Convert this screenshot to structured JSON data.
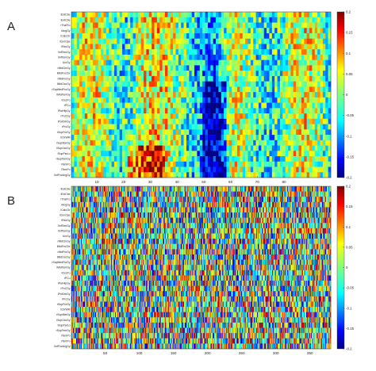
{
  "panels": [
    {
      "letter": "A"
    },
    {
      "letter": "B"
    }
  ],
  "chart_data": [
    {
      "type": "heatmap",
      "title": "",
      "xlabel": "",
      "ylabel": "",
      "x_range": [
        1,
        97
      ],
      "x_ticks": [
        10,
        20,
        30,
        40,
        50,
        60,
        70,
        80
      ],
      "rows": [
        "lExtCbe",
        "lExtCbe",
        "rThaPro",
        "rAngGy",
        "lCalcCtr",
        "rCenOpe",
        "lRecGy",
        "lInfTemGy",
        "rInfTemGy",
        "lLinGy",
        "rMidCinGy",
        "lMidFroCbr",
        "rMidFroGy",
        "lMidOccGy",
        "rSupMedFroGy",
        "lMidTemGy",
        "lOccPo",
        "rPCu",
        "lParHipGy",
        "rPoCGy",
        "lPoiOrbGy",
        "rPrcGy",
        "rSupFroGy",
        "rCbrWM",
        "rSupMarGy",
        "lSupOccGy",
        "lSupParLo",
        "rSupTemGy",
        "rTemPo",
        "lTemPo",
        "lInfFroAngGy"
      ],
      "colorbar": {
        "min": -0.2,
        "max": 0.2,
        "ticks": [
          "0.2",
          "0.15",
          "0.1",
          "0.05",
          "0",
          "-0.05",
          "-0.1",
          "-0.15",
          "-0.2"
        ],
        "colormap": "jet"
      }
    },
    {
      "type": "heatmap",
      "title": "",
      "xlabel": "",
      "ylabel": "",
      "x_range": [
        1,
        380
      ],
      "x_ticks": [
        50,
        100,
        150,
        200,
        250,
        300,
        350
      ],
      "rows": [
        "lExtCbe",
        "lExtCbe",
        "rThaPro",
        "rAngGy",
        "lCalcCtr",
        "rCenOpe",
        "lRecGy",
        "lInfTemGy",
        "rInfTemGy",
        "lLinGy",
        "rMidCinGy",
        "lMidFroCbr",
        "rMidFroGy",
        "lMidOccGy",
        "rSupMedFroGy",
        "lMidTemGy",
        "lOccPo",
        "rPCu",
        "lParHipGy",
        "rPoCGy",
        "lPoiOrbGy",
        "rPrcGy",
        "rSupFroGy",
        "rCbrWM",
        "rSupMarGy",
        "lSupOccGy",
        "lSupParLo",
        "rSupTemGy",
        "rTemPo",
        "lTemPo",
        "lInfFroAngGy"
      ],
      "colorbar": {
        "min": -0.2,
        "max": 0.2,
        "ticks": [
          "0.2",
          "0.15",
          "0.1",
          "0.05",
          "0",
          "-0.05",
          "-0.1",
          "-0.15",
          "-0.2"
        ],
        "colormap": "jet"
      }
    }
  ]
}
